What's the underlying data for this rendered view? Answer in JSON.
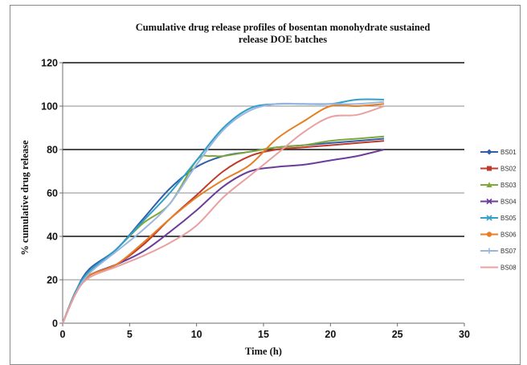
{
  "chart_data": {
    "type": "line",
    "title_lines": [
      "Cumulative drug release profiles of bosentan monohydrate sustained",
      "release DOE batches"
    ],
    "xlabel": "Time (h)",
    "ylabel": "% cumulative drug release",
    "xlim": [
      0,
      30
    ],
    "ylim": [
      0,
      120
    ],
    "xticks": [
      0,
      5,
      10,
      15,
      20,
      25,
      30
    ],
    "yticks": [
      0,
      20,
      40,
      60,
      80,
      100,
      120
    ],
    "grid": "horizontal",
    "legend_position": "right",
    "series": [
      {
        "name": "BS01",
        "color": "#2f5fa8",
        "marker": "diamond",
        "x": [
          0,
          1,
          2,
          4,
          6,
          8,
          10,
          12,
          14,
          16,
          18,
          20,
          22,
          24
        ],
        "y": [
          0,
          15,
          25,
          34,
          48,
          62,
          72,
          77,
          79,
          81,
          82,
          83,
          84,
          85
        ]
      },
      {
        "name": "BS02",
        "color": "#c0392b",
        "marker": "square",
        "x": [
          0,
          1,
          2,
          4,
          6,
          8,
          10,
          12,
          14,
          16,
          18,
          20,
          22,
          24
        ],
        "y": [
          0,
          14,
          22,
          27,
          36,
          48,
          59,
          70,
          77,
          80,
          81,
          82,
          83,
          84
        ]
      },
      {
        "name": "BS03",
        "color": "#7fa838",
        "marker": "triangle",
        "x": [
          0,
          1,
          2,
          4,
          6,
          8,
          10,
          11,
          12,
          14,
          16,
          18,
          20,
          22,
          24
        ],
        "y": [
          0,
          15,
          23,
          34,
          46,
          55,
          75,
          77,
          77,
          79,
          81,
          82,
          84,
          85,
          86
        ]
      },
      {
        "name": "BS04",
        "color": "#6a3d9a",
        "marker": "x",
        "x": [
          0,
          1,
          2,
          4,
          6,
          8,
          10,
          12,
          14,
          16,
          18,
          20,
          22,
          24
        ],
        "y": [
          0,
          14,
          22,
          27,
          33,
          42,
          52,
          63,
          70,
          72,
          73,
          75,
          77,
          80
        ]
      },
      {
        "name": "BS05",
        "color": "#31a0c8",
        "marker": "x",
        "x": [
          0,
          1,
          2,
          4,
          6,
          8,
          10,
          12,
          14,
          16,
          18,
          20,
          22,
          24
        ],
        "y": [
          0,
          15,
          24,
          34,
          47,
          60,
          75,
          90,
          99,
          101,
          101,
          101,
          103,
          103
        ]
      },
      {
        "name": "BS06",
        "color": "#e67e22",
        "marker": "circle",
        "x": [
          0,
          1,
          2,
          4,
          6,
          8,
          10,
          12,
          14,
          16,
          18,
          20,
          22,
          24
        ],
        "y": [
          0,
          14,
          22,
          27,
          37,
          48,
          58,
          66,
          73,
          85,
          93,
          100,
          100,
          101
        ]
      },
      {
        "name": "BS07",
        "color": "#9ab6e0",
        "marker": "plus",
        "x": [
          0,
          1,
          2,
          4,
          6,
          8,
          10,
          12,
          14,
          16,
          18,
          20,
          22,
          24
        ],
        "y": [
          0,
          14,
          23,
          33,
          43,
          55,
          73,
          89,
          98,
          101,
          101,
          101,
          101,
          102
        ]
      },
      {
        "name": "BS08",
        "color": "#e8a0a0",
        "marker": "none",
        "x": [
          0,
          1,
          2,
          4,
          6,
          8,
          10,
          12,
          14,
          16,
          18,
          20,
          22,
          24
        ],
        "y": [
          0,
          14,
          21,
          26,
          31,
          37,
          45,
          58,
          68,
          78,
          88,
          95,
          96,
          100
        ]
      }
    ]
  }
}
